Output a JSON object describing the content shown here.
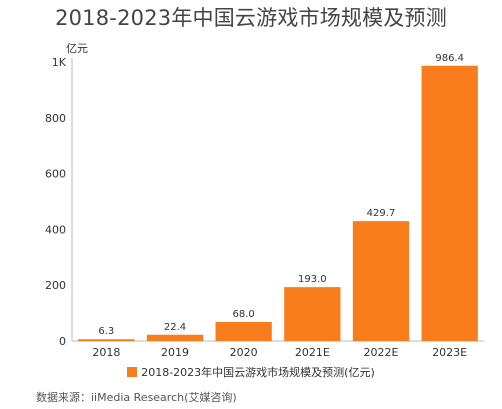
{
  "chart_data": {
    "type": "bar",
    "title": "2018-2023年中国云游戏市场规模及预测",
    "unit_label": "亿元",
    "categories": [
      "2018",
      "2019",
      "2020",
      "2021E",
      "2022E",
      "2023E"
    ],
    "series": [
      {
        "name": "2018-2023年中国云游戏市场规模及预测(亿元)",
        "values": [
          6.3,
          22.4,
          68.0,
          193.0,
          429.7,
          986.4
        ],
        "color": "#f97d1c"
      }
    ],
    "data_labels": [
      "6.3",
      "22.4",
      "68.0",
      "193.0",
      "429.7",
      "986.4"
    ],
    "yticks": [
      0,
      200,
      400,
      600,
      800,
      1000
    ],
    "ytick_labels": [
      "0",
      "200",
      "400",
      "600",
      "800",
      "1K"
    ],
    "ylim": [
      0,
      1000
    ],
    "grid": false,
    "legend_position": "bottom"
  },
  "source": "数据来源：iiMedia Research(艾媒咨询)"
}
